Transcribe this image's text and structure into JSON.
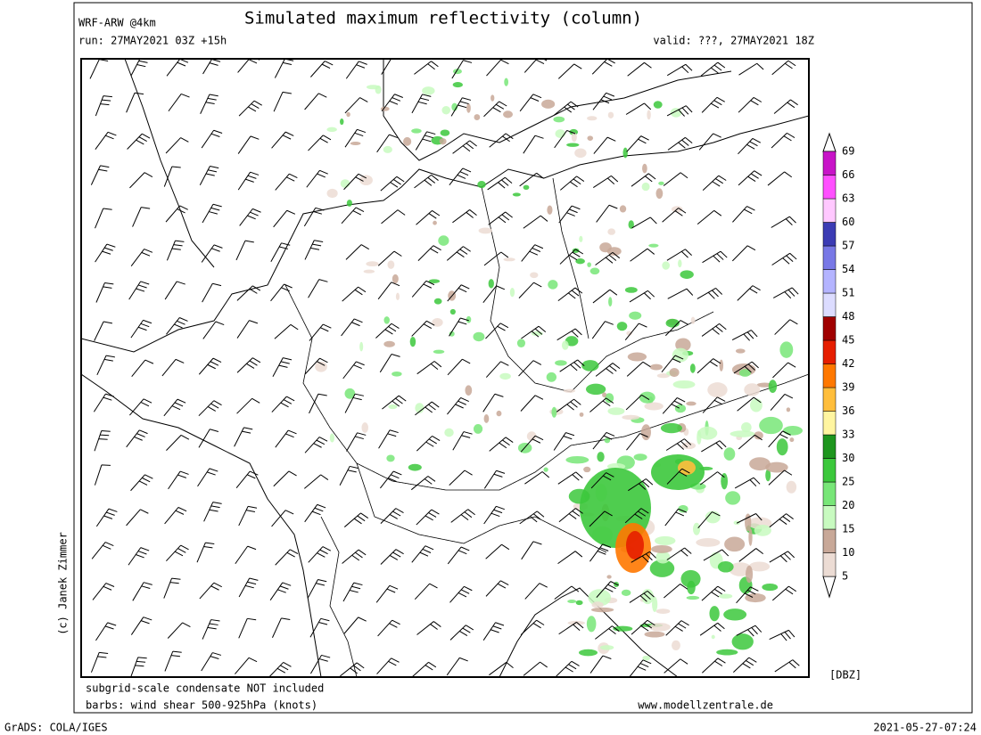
{
  "header": {
    "model": "WRF-ARW @4km",
    "title": "Simulated maximum reflectivity (column)",
    "run": "run: 27MAY2021 03Z +15h",
    "valid": "valid: ???, 27MAY2021 18Z",
    "copyright": "(c) Janek Zimmer"
  },
  "colorbar": {
    "unit": "[DBZ]",
    "levels": [
      5,
      10,
      15,
      20,
      25,
      30,
      33,
      36,
      39,
      42,
      45,
      48,
      51,
      54,
      57,
      60,
      63,
      66,
      69
    ],
    "colors": [
      "#ecdcd4",
      "#c8a898",
      "#c8fac0",
      "#78e678",
      "#3cc83c",
      "#1e961e",
      "#fff5a0",
      "#ffbe3c",
      "#ff7800",
      "#e61e00",
      "#a00000",
      "#dcdcff",
      "#b4b4ff",
      "#7878e6",
      "#3c3cb4",
      "#ffc8ff",
      "#ff50ff",
      "#c814c8"
    ]
  },
  "footer": {
    "note": "subgrid-scale condensate NOT included",
    "barbs": "barbs: wind shear 500-925hPa (knots)",
    "website": "www.modellzentrale.de",
    "software": "GrADS: COLA/IGES",
    "timestamp": "2021-05-27-07:24"
  }
}
